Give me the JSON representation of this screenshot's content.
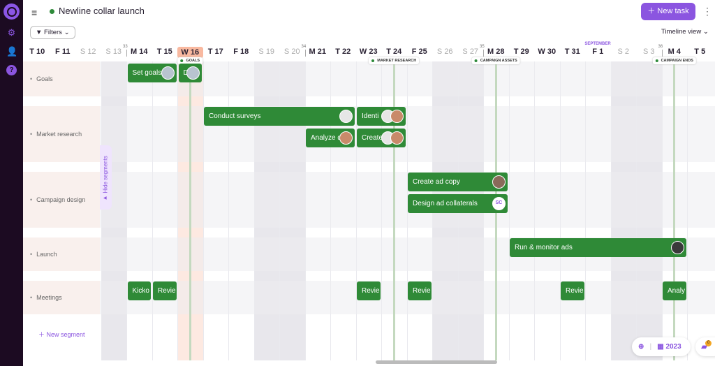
{
  "app": {
    "title": "Newline collar launch",
    "status_color": "#2e8a3a",
    "accent": "#8b55e0",
    "task_color": "#2f8a37"
  },
  "sidebar": {
    "icons": [
      "logo-icon",
      "gear-icon",
      "users-icon",
      "help-icon"
    ]
  },
  "toolbar": {
    "new_task": "New task",
    "filters": "Filters",
    "view": "Timeline view"
  },
  "timeline": {
    "month_label": "SEPTEMBER",
    "month_start": "F 1",
    "today": "W 16",
    "days": [
      "T 10",
      "F 11",
      "S 12",
      "S 13",
      "M 14",
      "T 15",
      "W 16",
      "T 17",
      "F 18",
      "S 19",
      "S 20",
      "M 21",
      "T 22",
      "W 23",
      "T 24",
      "F 25",
      "S 26",
      "S 27",
      "M 28",
      "T 29",
      "W 30",
      "T 31",
      "F 1",
      "S 2",
      "S 3",
      "M 4",
      "T 5"
    ],
    "weeks": [
      {
        "num": "33",
        "start": "M 14"
      },
      {
        "num": "34",
        "start": "M 21"
      },
      {
        "num": "35",
        "start": "M 28"
      },
      {
        "num": "36",
        "start": "M 4"
      }
    ],
    "milestones": [
      {
        "label": "GOALS",
        "day": "W 16"
      },
      {
        "label": "MARKET RESEARCH",
        "day": "T 24"
      },
      {
        "label": "CAMPAIGN ASSETS",
        "day": "M 28"
      },
      {
        "label": "CAMPAIGN ENDS",
        "day": "M 4"
      }
    ]
  },
  "segments": [
    {
      "name": "Goals",
      "tasks": [
        {
          "label": "Set goals",
          "start": "M 14",
          "end": "T 15",
          "lane": 0,
          "avatars": [
            "#b8c4d0"
          ]
        },
        {
          "label": "D",
          "start": "W 16",
          "end": "W 16",
          "lane": 0,
          "avatars": [
            "#b8c4d0"
          ]
        }
      ]
    },
    {
      "name": "Market research",
      "tasks": [
        {
          "label": "Conduct surveys",
          "start": "T 17",
          "end": "T 22",
          "lane": 0,
          "avatars": [
            "#e6e6e6"
          ]
        },
        {
          "label": "Identi",
          "start": "W 23",
          "end": "T 24",
          "lane": 0,
          "avatars": [
            "#e6e6e6",
            "#c98a6a"
          ]
        },
        {
          "label": "Analyze d",
          "start": "M 21",
          "end": "T 22",
          "lane": 1,
          "avatars": [
            "#c98a6a"
          ]
        },
        {
          "label": "Create",
          "start": "W 23",
          "end": "T 24",
          "lane": 1,
          "avatars": [
            "#e6e6e6",
            "#c98a6a"
          ]
        }
      ]
    },
    {
      "name": "Campaign design",
      "tasks": [
        {
          "label": "Create ad copy",
          "start": "F 25",
          "end": "M 28",
          "lane": 0,
          "avatars": [
            "#8a6a5a"
          ]
        },
        {
          "label": "Design ad collaterals",
          "start": "F 25",
          "end": "M 28",
          "lane": 1,
          "avatars": [
            "SC"
          ]
        }
      ]
    },
    {
      "name": "Launch",
      "tasks": [
        {
          "label": "Run & monitor ads",
          "start": "T 29",
          "end": "M 4",
          "lane": 0,
          "avatars": [
            "#3a3a3a"
          ]
        }
      ]
    },
    {
      "name": "Meetings",
      "tasks": [
        {
          "label": "Kicko",
          "start": "M 14",
          "end": "M 14",
          "lane": 0,
          "avatars": []
        },
        {
          "label": "Revie",
          "start": "T 15",
          "end": "T 15",
          "lane": 0,
          "avatars": []
        },
        {
          "label": "Revie",
          "start": "W 23",
          "end": "W 23",
          "lane": 0,
          "avatars": []
        },
        {
          "label": "Revie",
          "start": "F 25",
          "end": "F 25",
          "lane": 0,
          "avatars": []
        },
        {
          "label": "Revie",
          "start": "T 31",
          "end": "T 31",
          "lane": 0,
          "avatars": []
        },
        {
          "label": "Analy",
          "start": "M 4",
          "end": "M 4",
          "lane": 0,
          "avatars": []
        }
      ]
    }
  ],
  "hide_segments": "Hide segments",
  "new_segment": "New segment",
  "footer": {
    "year": "2023",
    "notifications": "0"
  }
}
